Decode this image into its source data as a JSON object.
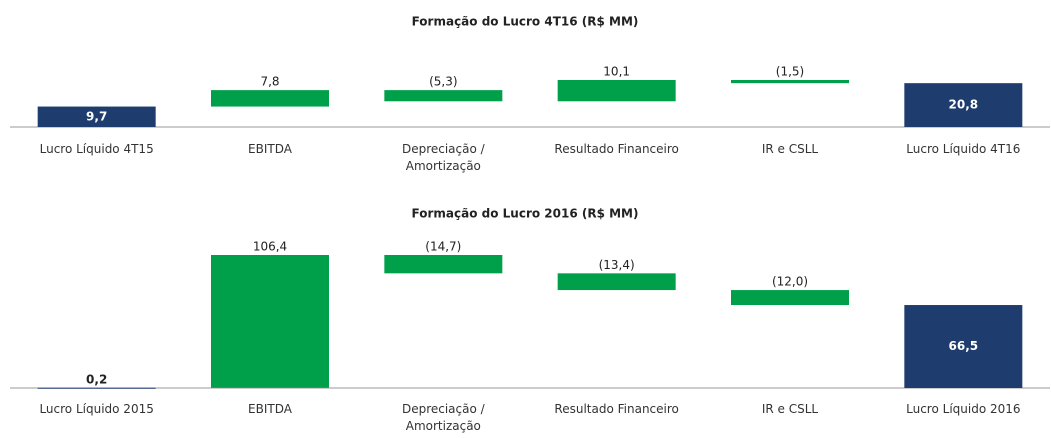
{
  "chart_data": [
    {
      "type": "waterfall",
      "title": "Formação do Lucro 4T16  (R$ MM)",
      "categories": [
        "Lucro Líquido 4T15",
        "EBITDA",
        "Depreciação / Amortização",
        "Resultado Financeiro",
        "IR e CSLL",
        "Lucro Líquido 4T16"
      ],
      "values": [
        9.7,
        7.8,
        -5.3,
        10.1,
        -1.5,
        20.8
      ],
      "value_labels": [
        "9,7",
        "7,8",
        "(5,3)",
        "10,1",
        "(1,5)",
        "20,8"
      ],
      "total_color": "#1f3c6e",
      "delta_color": "#00a04b"
    },
    {
      "type": "waterfall",
      "title": "Formação do Lucro 2016  (R$ MM)",
      "categories": [
        "Lucro Líquido 2015",
        "EBITDA",
        "Depreciação / Amortização",
        "Resultado Financeiro",
        "IR e CSLL",
        "Lucro Líquido 2016"
      ],
      "values": [
        0.2,
        106.4,
        -14.7,
        -13.4,
        -12.0,
        66.5
      ],
      "value_labels": [
        "0,2",
        "106,4",
        "(14,7)",
        "(13,4)",
        "(12,0)",
        "66,5"
      ],
      "total_color": "#1f3c6e",
      "delta_color": "#00a04b"
    }
  ]
}
